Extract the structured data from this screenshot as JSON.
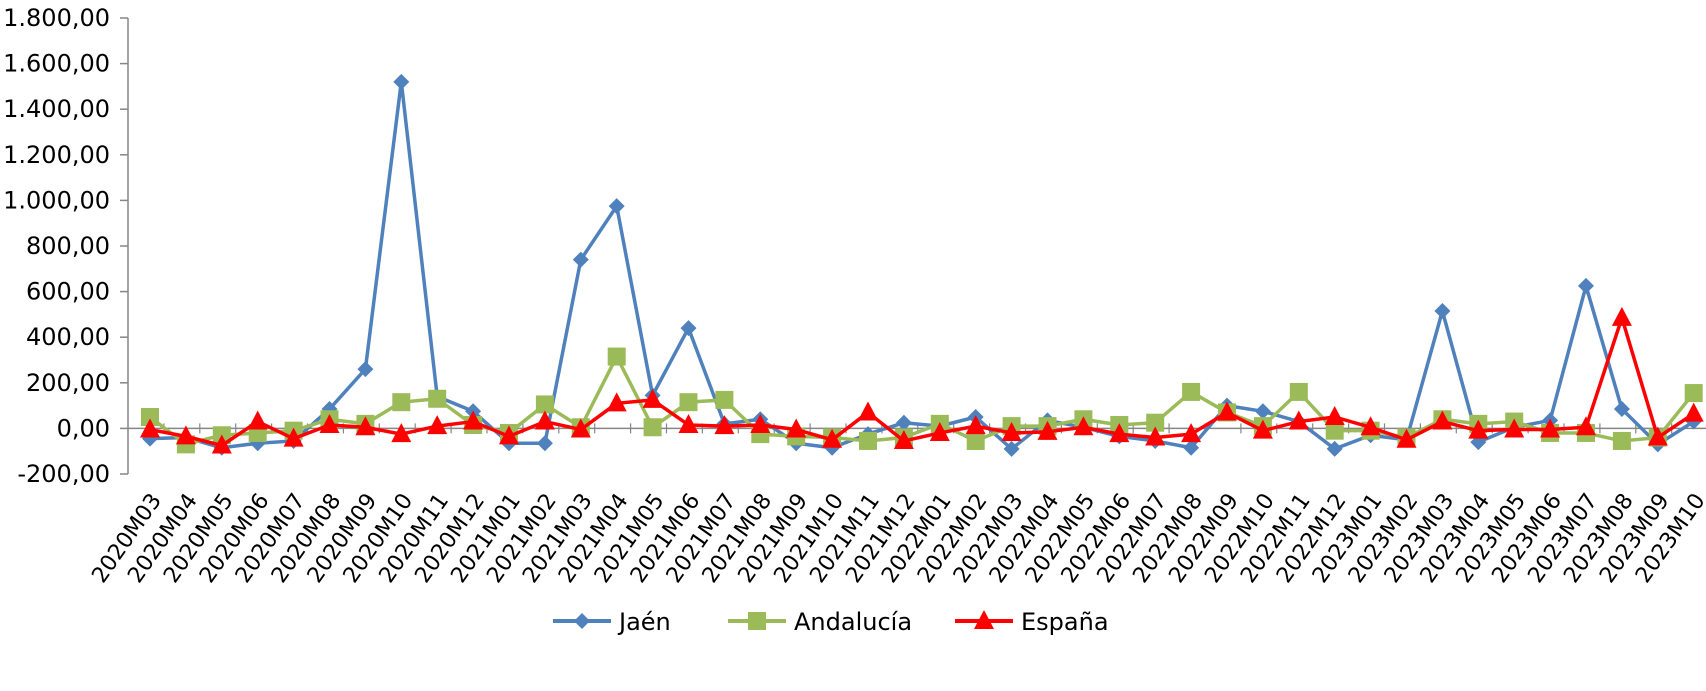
{
  "chart_data": {
    "type": "line",
    "title": "",
    "xlabel": "",
    "ylabel": "",
    "ylim": [
      -200,
      1800
    ],
    "y_ticks": [
      "-200,00",
      "0,00",
      "200,00",
      "400,00",
      "600,00",
      "800,00",
      "1.000,00",
      "1.200,00",
      "1.400,00",
      "1.600,00",
      "1.800,00"
    ],
    "y_tick_values": [
      -200,
      0,
      200,
      400,
      600,
      800,
      1000,
      1200,
      1400,
      1600,
      1800
    ],
    "grid": false,
    "legend_position": "bottom",
    "categories": [
      "2020M03",
      "2020M04",
      "2020M05",
      "2020M06",
      "2020M07",
      "2020M08",
      "2020M09",
      "2020M10",
      "2020M11",
      "2020M12",
      "2021M01",
      "2021M02",
      "2021M03",
      "2021M04",
      "2021M05",
      "2021M06",
      "2021M07",
      "2021M08",
      "2021M09",
      "2021M10",
      "2021M11",
      "2021M12",
      "2022M01",
      "2022M02",
      "2022M03",
      "2022M04",
      "2022M05",
      "2022M06",
      "2022M07",
      "2022M08",
      "2022M09",
      "2022M10",
      "2022M11",
      "2022M12",
      "2023M01",
      "2023M02",
      "2023M03",
      "2023M04",
      "2023M05",
      "2023M06",
      "2023M07",
      "2023M08",
      "2023M09",
      "2023M10"
    ],
    "series": [
      {
        "name": "Jaén",
        "color": "#4F81BD",
        "marker": "diamond",
        "values": [
          -45,
          -40,
          -85,
          -65,
          -55,
          85,
          260,
          1520,
          140,
          75,
          -65,
          -65,
          740,
          975,
          145,
          440,
          20,
          40,
          -65,
          -85,
          -25,
          25,
          10,
          50,
          -90,
          35,
          5,
          -35,
          -55,
          -85,
          100,
          75,
          30,
          -90,
          -30,
          -50,
          515,
          -60,
          5,
          35,
          625,
          85,
          -70,
          30
        ]
      },
      {
        "name": "Andalucía",
        "color": "#9BBB59",
        "marker": "square",
        "values": [
          50,
          -70,
          -30,
          -20,
          -10,
          40,
          20,
          115,
          130,
          15,
          -20,
          105,
          5,
          315,
          5,
          115,
          125,
          -25,
          -35,
          -40,
          -55,
          -40,
          20,
          -55,
          10,
          10,
          40,
          15,
          25,
          160,
          70,
          10,
          160,
          -10,
          -10,
          -40,
          40,
          20,
          30,
          -20,
          -20,
          -55,
          -40,
          155
        ]
      },
      {
        "name": "España",
        "color": "#FF0000",
        "marker": "triangle",
        "values": [
          -5,
          -35,
          -75,
          30,
          -45,
          15,
          5,
          -25,
          10,
          30,
          -35,
          30,
          -5,
          110,
          125,
          15,
          10,
          15,
          -5,
          -50,
          70,
          -55,
          -20,
          10,
          -20,
          -15,
          5,
          -25,
          -40,
          -25,
          70,
          -10,
          30,
          50,
          5,
          -50,
          30,
          -10,
          -5,
          -5,
          5,
          485,
          -40,
          65
        ]
      }
    ]
  }
}
